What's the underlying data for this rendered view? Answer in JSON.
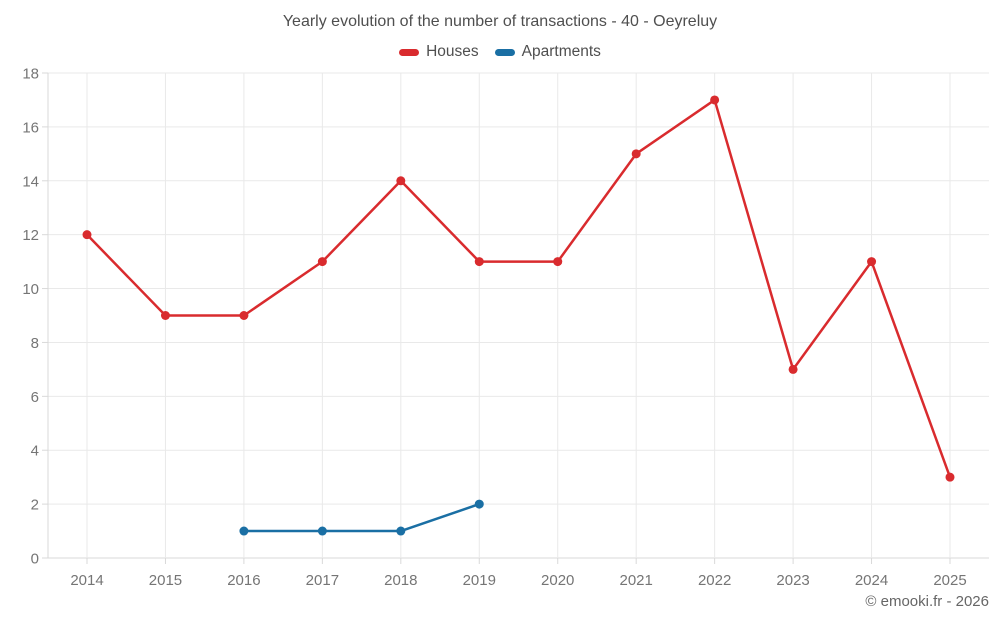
{
  "page": {
    "footer": "© emooki.fr - 2026"
  },
  "colors": {
    "background": "#ffffff",
    "grid": "#e9e9e9",
    "axis": "#d9d9d9",
    "tick_label": "#757575",
    "title_text": "#4f4f4f",
    "footer_text": "#666666"
  },
  "chart_data": {
    "type": "line",
    "title": "Yearly evolution of the number of transactions - 40 - Oeyreluy",
    "categories": [
      2014,
      2015,
      2016,
      2017,
      2018,
      2019,
      2020,
      2021,
      2022,
      2023,
      2024,
      2025
    ],
    "series": [
      {
        "name": "Houses",
        "color": "#d92b2e",
        "values": [
          12,
          9,
          9,
          11,
          14,
          11,
          11,
          15,
          17,
          7,
          11,
          3
        ]
      },
      {
        "name": "Apartments",
        "color": "#1a6fa4",
        "values": [
          null,
          null,
          1,
          1,
          1,
          2,
          null,
          null,
          null,
          null,
          null,
          null
        ]
      }
    ],
    "xlabel": "",
    "ylabel": "",
    "ylim": [
      0,
      18
    ],
    "ytick_step": 2,
    "grid": true,
    "legend_position": "top",
    "marker_radius": 4.5,
    "line_width": 2.5
  }
}
